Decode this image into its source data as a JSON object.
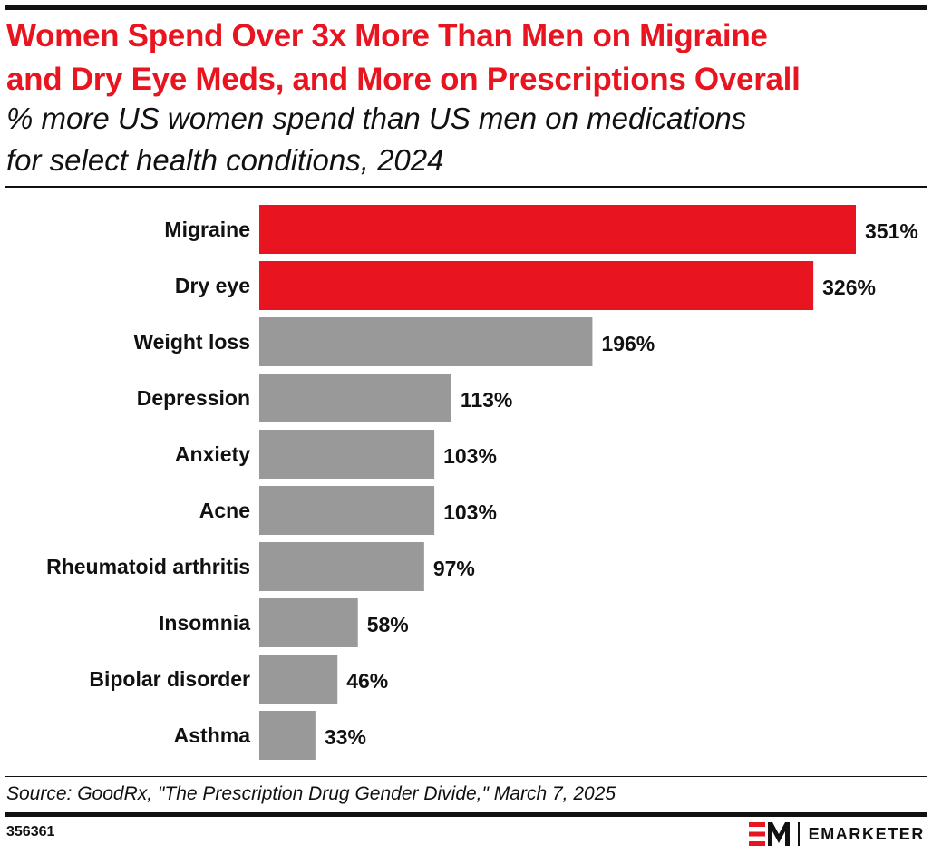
{
  "header": {
    "title": "Women Spend Over 3x More Than Men on Migraine and Dry Eye Meds, and More on Prescriptions Overall",
    "title_line1": "Women Spend Over 3x More Than Men on Migraine",
    "title_line2": "and Dry Eye Meds, and More on Prescriptions Overall",
    "subtitle_line1": "% more US women spend than US men on medications",
    "subtitle_line2": "for select health conditions, 2024"
  },
  "chart_data": {
    "type": "bar",
    "orientation": "horizontal",
    "categories": [
      "Migraine",
      "Dry eye",
      "Weight loss",
      "Depression",
      "Anxiety",
      "Acne",
      "Rheumatoid arthritis",
      "Insomnia",
      "Bipolar disorder",
      "Asthma"
    ],
    "values": [
      351,
      326,
      196,
      113,
      103,
      103,
      97,
      58,
      46,
      33
    ],
    "value_labels": [
      "351%",
      "326%",
      "196%",
      "113%",
      "103%",
      "103%",
      "97%",
      "58%",
      "46%",
      "33%"
    ],
    "highlighted": [
      true,
      true,
      false,
      false,
      false,
      false,
      false,
      false,
      false,
      false
    ],
    "colors": {
      "highlight": "#e8141f",
      "default": "#999999"
    },
    "unit": "%",
    "grid": false,
    "legend": "none"
  },
  "footer": {
    "source": "Source: GoodRx, \"The Prescription Drug Gender Divide,\" March 7, 2025",
    "chart_id": "356361",
    "brand_name": "EMARKETER",
    "brand_mark": "EM"
  }
}
